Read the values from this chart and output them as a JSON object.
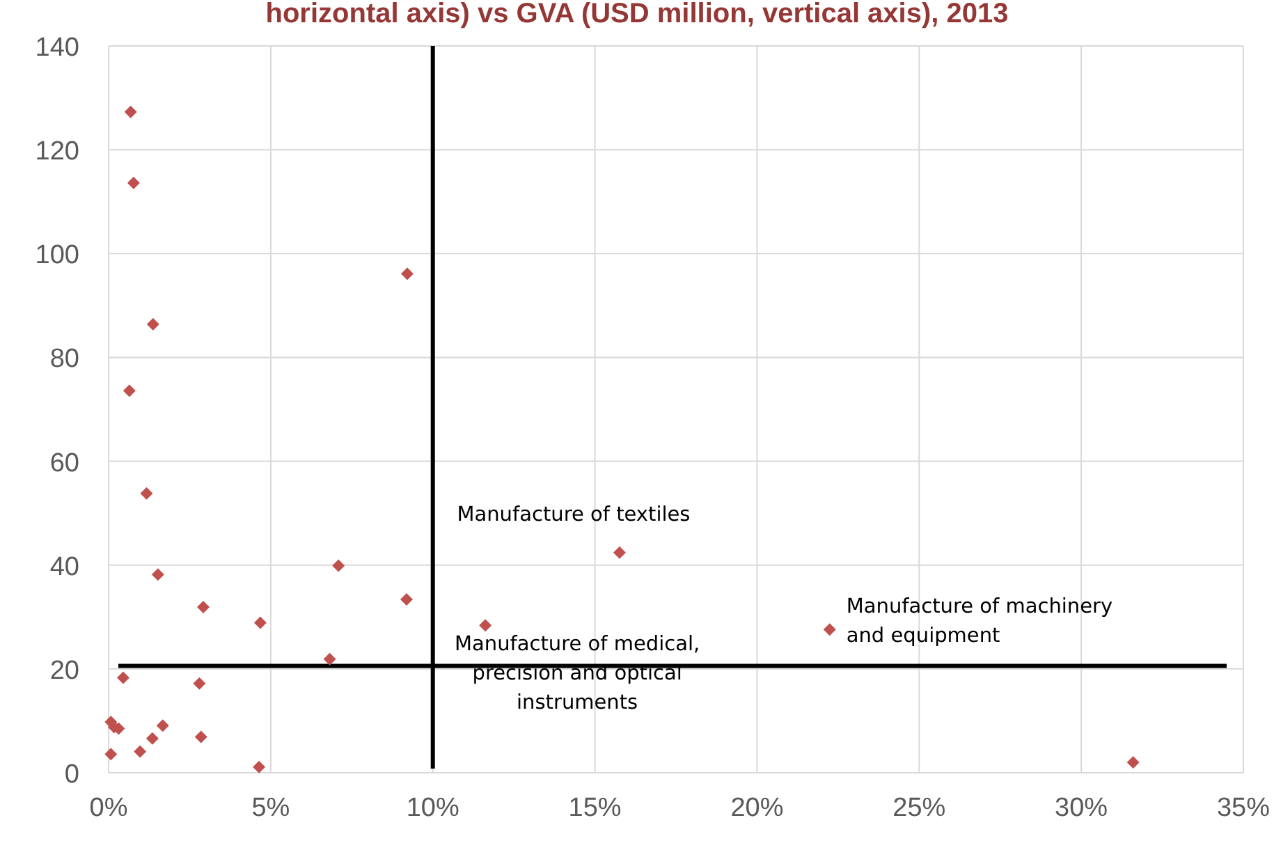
{
  "chart_data": {
    "type": "scatter",
    "title": "horizontal axis) vs GVA (USD million, vertical axis), 2013",
    "x": [
      0.68,
      0.77,
      9.21,
      1.37,
      0.64,
      1.17,
      1.52,
      7.09,
      2.92,
      9.19,
      4.68,
      6.82,
      0.45,
      2.8,
      0.07,
      0.17,
      0.31,
      1.67,
      1.35,
      2.85,
      0.97,
      0.07,
      4.64,
      15.76,
      11.62,
      22.24,
      31.6
    ],
    "series": [
      {
        "color": "#c0504d",
        "values": [
          127.3,
          113.6,
          96.1,
          86.4,
          73.6,
          53.8,
          38.2,
          39.9,
          31.9,
          33.4,
          28.9,
          21.9,
          18.3,
          17.2,
          9.8,
          8.8,
          8.5,
          9.1,
          6.6,
          6.9,
          4.1,
          3.6,
          1.1,
          42.4,
          28.4,
          27.6,
          2.0
        ]
      }
    ],
    "xlim": [
      0,
      35
    ],
    "ylim": [
      0,
      140
    ],
    "xticks": [
      {
        "value": 0,
        "label": "0%"
      },
      {
        "value": 5,
        "label": "5%"
      },
      {
        "value": 10,
        "label": "10%"
      },
      {
        "value": 15,
        "label": "15%"
      },
      {
        "value": 20,
        "label": "20%"
      },
      {
        "value": 25,
        "label": "25%"
      },
      {
        "value": 30,
        "label": "30%"
      },
      {
        "value": 35,
        "label": "35%"
      }
    ],
    "yticks": [
      0,
      20,
      40,
      60,
      80,
      100,
      120,
      140
    ],
    "grid": true,
    "marker": "diamond",
    "ref_lines": [
      {
        "axis": "x",
        "value": 10,
        "color": "#000000"
      },
      {
        "axis": "y",
        "value": 20.6,
        "color": "#000000"
      }
    ],
    "annotations": [
      {
        "text": "Manufacture of textiles",
        "x": 15.76,
        "y": 42.4
      },
      {
        "text": "Manufacture of machinery and equipment",
        "x": 22.24,
        "y": 27.6
      },
      {
        "text": "Manufacture of medical, precision and optical instruments",
        "x": 11.62,
        "y": 28.4
      }
    ]
  }
}
